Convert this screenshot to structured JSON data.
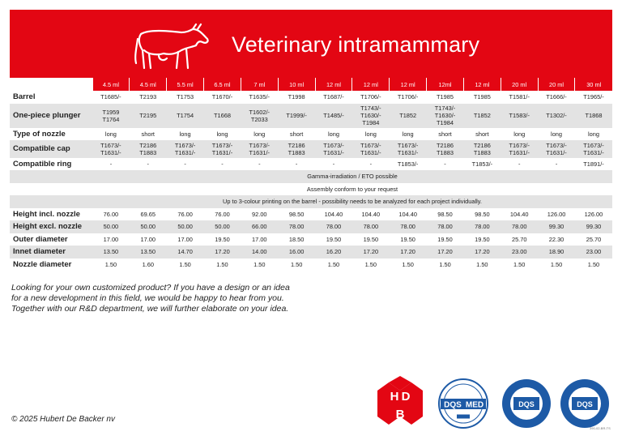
{
  "header": {
    "title": "Veterinary intramammary"
  },
  "volumes": [
    "4.5 ml",
    "4.5 ml",
    "5.5 ml",
    "6.5 ml",
    "7 ml",
    "10 ml",
    "12 ml",
    "12 ml",
    "12 ml",
    "12ml",
    "12 ml",
    "20 ml",
    "20 ml",
    "30 ml"
  ],
  "rows": [
    {
      "label": "Barrel",
      "style": "w",
      "cells": [
        [
          "T1685/-"
        ],
        [
          "T2193"
        ],
        [
          "T1753"
        ],
        [
          "T1670/-"
        ],
        [
          "T1635/-"
        ],
        [
          "T1998"
        ],
        [
          "T1687/-"
        ],
        [
          "T1706/-"
        ],
        [
          "T1706/-"
        ],
        [
          "T1985"
        ],
        [
          "T1985"
        ],
        [
          "T1581/-"
        ],
        [
          "T1666/-"
        ],
        [
          "T1965/-"
        ]
      ]
    },
    {
      "label": "One-piece plunger",
      "style": "g",
      "cells": [
        [
          "T1959",
          "T1764"
        ],
        [
          "T2195"
        ],
        [
          "T1754"
        ],
        [
          "T1668"
        ],
        [
          "T1602/-",
          "T2033"
        ],
        [
          "T1999/-"
        ],
        [
          "T1485/-"
        ],
        [
          "T1743/-",
          "T1630/-",
          "T1984"
        ],
        [
          "T1852"
        ],
        [
          "T1743/-",
          "T1630/-",
          "T1984"
        ],
        [
          "T1852"
        ],
        [
          "T1583/-"
        ],
        [
          "T1302/-"
        ],
        [
          "T1868"
        ]
      ]
    },
    {
      "label": "Type of nozzle",
      "style": "w",
      "cells": [
        [
          "long"
        ],
        [
          "short"
        ],
        [
          "long"
        ],
        [
          "long"
        ],
        [
          "long"
        ],
        [
          "short"
        ],
        [
          "long"
        ],
        [
          "long"
        ],
        [
          "long"
        ],
        [
          "short"
        ],
        [
          "short"
        ],
        [
          "long"
        ],
        [
          "long"
        ],
        [
          "long"
        ]
      ]
    },
    {
      "label": "Compatible cap",
      "style": "g",
      "cells": [
        [
          "T1673/-",
          "T1631/-"
        ],
        [
          "T2186",
          "T1883"
        ],
        [
          "T1673/-",
          "T1631/-"
        ],
        [
          "T1673/-",
          "T1631/-"
        ],
        [
          "T1673/-",
          "T1631/-"
        ],
        [
          "T2186",
          "T1883"
        ],
        [
          "T1673/-",
          "T1631/-"
        ],
        [
          "T1673/-",
          "T1631/-"
        ],
        [
          "T1673/-",
          "T1631/-"
        ],
        [
          "T2186",
          "T1883"
        ],
        [
          "T2186",
          "T1883"
        ],
        [
          "T1673/-",
          "T1631/-"
        ],
        [
          "T1673/-",
          "T1631/-"
        ],
        [
          "T1673/-",
          "T1631/-"
        ]
      ]
    },
    {
      "label": "Compatible ring",
      "style": "w",
      "cells": [
        [
          "-"
        ],
        [
          "-"
        ],
        [
          "-"
        ],
        [
          "-"
        ],
        [
          "-"
        ],
        [
          "-"
        ],
        [
          "-"
        ],
        [
          "-"
        ],
        [
          "T1853/-"
        ],
        [
          "-"
        ],
        [
          "T1853/-"
        ],
        [
          "-"
        ],
        [
          "-"
        ],
        [
          "T1891/-"
        ]
      ]
    },
    {
      "label": "",
      "style": "g",
      "span": "Gamma-irradiation / ETO possible"
    },
    {
      "label": "",
      "style": "w",
      "span": "Assembly conform to your request"
    },
    {
      "label": "",
      "style": "g",
      "span": "Up to 3-colour printing on the barrel - possibility needs to be analyzed for each project individually."
    },
    {
      "label": "Height incl. nozzle",
      "style": "w",
      "cells": [
        [
          "76.00"
        ],
        [
          "69.65"
        ],
        [
          "76.00"
        ],
        [
          "76.00"
        ],
        [
          "92.00"
        ],
        [
          "98.50"
        ],
        [
          "104.40"
        ],
        [
          "104.40"
        ],
        [
          "104.40"
        ],
        [
          "98.50"
        ],
        [
          "98.50"
        ],
        [
          "104.40"
        ],
        [
          "126.00"
        ],
        [
          "126.00"
        ]
      ]
    },
    {
      "label": "Height excl. nozzle",
      "style": "g",
      "cells": [
        [
          "50.00"
        ],
        [
          "50.00"
        ],
        [
          "50.00"
        ],
        [
          "50.00"
        ],
        [
          "66.00"
        ],
        [
          "78.00"
        ],
        [
          "78.00"
        ],
        [
          "78.00"
        ],
        [
          "78.00"
        ],
        [
          "78.00"
        ],
        [
          "78.00"
        ],
        [
          "78.00"
        ],
        [
          "99.30"
        ],
        [
          "99.30"
        ]
      ]
    },
    {
      "label": "Outer diameter",
      "style": "w",
      "cells": [
        [
          "17.00"
        ],
        [
          "17.00"
        ],
        [
          "17.00"
        ],
        [
          "19.50"
        ],
        [
          "17.00"
        ],
        [
          "18.50"
        ],
        [
          "19.50"
        ],
        [
          "19.50"
        ],
        [
          "19.50"
        ],
        [
          "19.50"
        ],
        [
          "19.50"
        ],
        [
          "25.70"
        ],
        [
          "22.30"
        ],
        [
          "25.70"
        ]
      ]
    },
    {
      "label": "Innet diameter",
      "style": "g",
      "cells": [
        [
          "13.50"
        ],
        [
          "13.50"
        ],
        [
          "14.70"
        ],
        [
          "17.20"
        ],
        [
          "14.00"
        ],
        [
          "16.00"
        ],
        [
          "16.20"
        ],
        [
          "17.20"
        ],
        [
          "17.20"
        ],
        [
          "17.20"
        ],
        [
          "17.20"
        ],
        [
          "23.00"
        ],
        [
          "18.90"
        ],
        [
          "23.00"
        ]
      ]
    },
    {
      "label": "Nozzle diameter",
      "style": "w",
      "cells": [
        [
          "1.50"
        ],
        [
          "1.60"
        ],
        [
          "1.50"
        ],
        [
          "1.50"
        ],
        [
          "1.50"
        ],
        [
          "1.50"
        ],
        [
          "1.50"
        ],
        [
          "1.50"
        ],
        [
          "1.50"
        ],
        [
          "1.50"
        ],
        [
          "1.50"
        ],
        [
          "1.50"
        ],
        [
          "1.50"
        ],
        [
          "1.50"
        ]
      ]
    }
  ],
  "note_lines": [
    "Looking for your own customized product? If you have a design or an idea",
    "for a new development in this field, we would be happy to hear from you.",
    "Together with our R&D department, we will further elaborate on your idea."
  ],
  "footer": {
    "copyright": "© 2025 Hubert De Backer nv",
    "doc_code": "390-02-BR-TS"
  },
  "logos": {
    "hdb_letters": [
      "H",
      "D",
      "B"
    ],
    "dqs_text": "DQS",
    "med_text": "MED",
    "dqs_small": "DQS"
  },
  "colors": {
    "brand_red": "#e30613",
    "row_gray": "#e3e3e3",
    "cert_blue": "#1d5aa6"
  },
  "icons": {
    "header": "cow-icon"
  }
}
